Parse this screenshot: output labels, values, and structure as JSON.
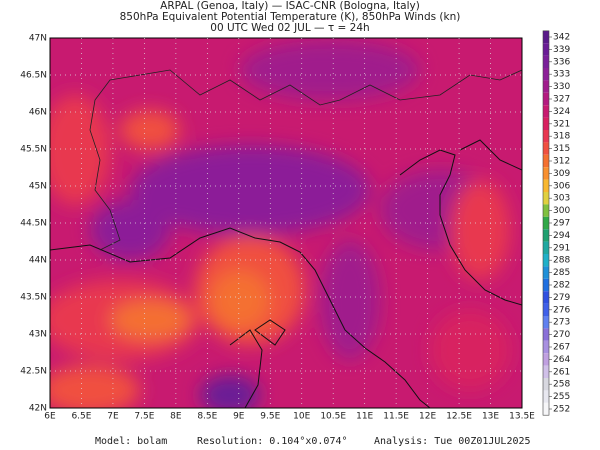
{
  "header": {
    "lines": [
      "ARPAL (Genoa, Italy)  —  ISAC-CNR (Bologna, Italy)",
      "850hPa Equivalent Potential Temperature (K), 850hPa Winds (kn)",
      "00 UTC Wed 02 JUL  —  τ = 24h"
    ]
  },
  "map": {
    "lat_labels": [
      "47N",
      "46.5N",
      "46N",
      "45.5N",
      "45N",
      "44.5N",
      "44N",
      "43.5N",
      "43N",
      "42.5N",
      "42N"
    ],
    "lon_labels": [
      "6E",
      "6.5E",
      "7E",
      "7.5E",
      "8E",
      "8.5E",
      "9E",
      "9.5E",
      "10E",
      "10.5E",
      "11E",
      "11.5E",
      "12E",
      "12.5E",
      "13E",
      "13.5E"
    ]
  },
  "colorbar": {
    "levels": [
      342,
      339,
      336,
      333,
      330,
      327,
      324,
      321,
      318,
      315,
      312,
      309,
      306,
      303,
      300,
      297,
      294,
      291,
      288,
      285,
      282,
      279,
      276,
      273,
      270,
      267,
      264,
      261,
      258,
      255,
      252
    ],
    "colors": [
      "#5a1a8a",
      "#6a1c96",
      "#7a1f9a",
      "#8c1f98",
      "#a01c8c",
      "#b41a80",
      "#c81a70",
      "#d82060",
      "#e83850",
      "#f05040",
      "#f47030",
      "#f89030",
      "#f8b830",
      "#e0d040",
      "#80c040",
      "#30a848",
      "#20a070",
      "#20a8a0",
      "#20b0c8",
      "#2090d8",
      "#2070e0",
      "#3050e0",
      "#4060e8",
      "#6080f0",
      "#8a70d8",
      "#a890e0",
      "#c0a0e0",
      "#d0c0e8",
      "#d8d8e0",
      "#e8e8f0",
      "#f6f6f8"
    ]
  },
  "footer": {
    "model": "Model: bolam",
    "resolution": "Resolution: 0.104°x0.074°",
    "analysis": "Analysis: Tue 00Z01JUL2025"
  }
}
